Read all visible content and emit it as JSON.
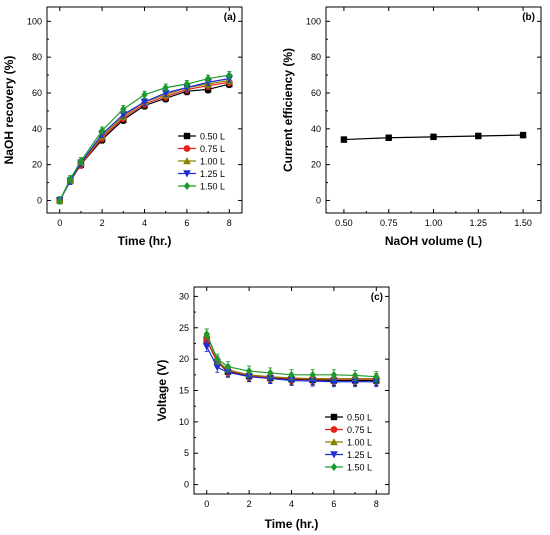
{
  "chart_data": [
    {
      "type": "line",
      "panel_label": "(a)",
      "xlabel": "Time (hr.)",
      "ylabel": "NaOH recovery (%)",
      "xlim": [
        -0.6,
        8.6
      ],
      "ylim": [
        -7,
        108
      ],
      "xticks": [
        0,
        2,
        4,
        6,
        8
      ],
      "yticks": [
        0,
        20,
        40,
        60,
        80,
        100
      ],
      "legend_position": "bottom-right",
      "x": [
        0,
        0.5,
        1,
        2,
        3,
        4,
        5,
        6,
        7,
        8
      ],
      "series": [
        {
          "name": "0.50 L",
          "color": "#000000",
          "marker": "square",
          "values": [
            0,
            11,
            20,
            34,
            45,
            53,
            57,
            61,
            62,
            65
          ]
        },
        {
          "name": "0.75 L",
          "color": "#e8201b",
          "marker": "circle",
          "values": [
            0,
            11,
            20,
            35,
            46,
            54,
            58,
            62,
            64,
            66
          ]
        },
        {
          "name": "1.00 L",
          "color": "#8a8200",
          "marker": "triangle-up",
          "values": [
            0,
            11,
            21,
            36,
            47,
            55,
            59,
            63,
            65,
            67
          ]
        },
        {
          "name": "1.25 L",
          "color": "#1f2fd8",
          "marker": "triangle-down",
          "values": [
            0,
            11,
            21,
            37,
            48,
            55,
            60,
            63,
            66,
            68
          ]
        },
        {
          "name": "1.50 L",
          "color": "#1d9a2e",
          "marker": "diamond",
          "values": [
            0,
            12,
            22,
            39,
            51,
            59,
            63,
            65,
            68,
            70
          ]
        }
      ],
      "error": 2
    },
    {
      "type": "line",
      "panel_label": "(b)",
      "xlabel": "NaOH volume (L)",
      "ylabel": "Current efficiency (%)",
      "xlim": [
        0.4,
        1.6
      ],
      "ylim": [
        -7,
        108
      ],
      "xticks": [
        "0.50",
        "0.75",
        "1.00",
        "1.25",
        "1.50"
      ],
      "yticks": [
        0,
        20,
        40,
        60,
        80,
        100
      ],
      "x": [
        0.5,
        0.75,
        1.0,
        1.25,
        1.5
      ],
      "series": [
        {
          "color": "#000000",
          "marker": "square",
          "values": [
            34,
            35,
            35.5,
            36,
            36.5
          ]
        }
      ],
      "error": 1.5
    },
    {
      "type": "line",
      "panel_label": "(c)",
      "xlabel": "Time (hr.)",
      "ylabel": "Voltage (V)",
      "xlim": [
        -0.6,
        8.6
      ],
      "ylim": [
        -1.5,
        31.5
      ],
      "xticks": [
        0,
        2,
        4,
        6,
        8
      ],
      "yticks": [
        0,
        5,
        10,
        15,
        20,
        25,
        30
      ],
      "legend_position": "bottom-right",
      "x": [
        0,
        0.5,
        1,
        2,
        3,
        4,
        5,
        6,
        7,
        8
      ],
      "series": [
        {
          "name": "0.50 L",
          "color": "#000000",
          "marker": "square",
          "values": [
            23,
            19.5,
            18,
            17.3,
            17,
            16.8,
            16.7,
            16.6,
            16.6,
            16.6
          ]
        },
        {
          "name": "0.75 L",
          "color": "#e8201b",
          "marker": "circle",
          "values": [
            23,
            19.5,
            18.2,
            17.4,
            17.1,
            16.9,
            16.8,
            16.8,
            16.8,
            16.8
          ]
        },
        {
          "name": "1.00 L",
          "color": "#8a8200",
          "marker": "triangle-up",
          "values": [
            24,
            19.7,
            18.3,
            17.5,
            17.2,
            17.0,
            16.9,
            16.9,
            16.9,
            16.9
          ]
        },
        {
          "name": "1.25 L",
          "color": "#1f2fd8",
          "marker": "triangle-down",
          "values": [
            22,
            18.7,
            17.9,
            17.2,
            16.9,
            16.6,
            16.5,
            16.4,
            16.4,
            16.4
          ]
        },
        {
          "name": "1.50 L",
          "color": "#1d9a2e",
          "marker": "diamond",
          "values": [
            24,
            20,
            18.8,
            18.1,
            17.8,
            17.5,
            17.5,
            17.5,
            17.4,
            17.2
          ]
        }
      ],
      "error": 0.8
    }
  ]
}
